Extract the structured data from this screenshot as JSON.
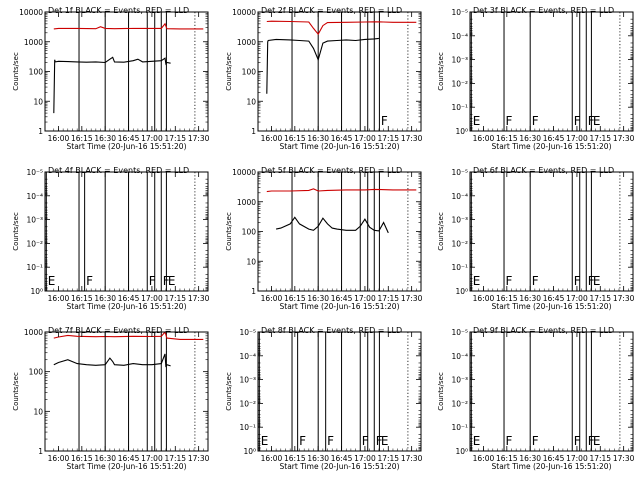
{
  "figure": {
    "start_label": "Start Time (20-Jun-16 15:51:20)",
    "ylabel": "Counts/sec",
    "x_ticks": [
      "16:00",
      "16:15",
      "16:30",
      "16:45",
      "17:00",
      "17:15",
      "17:30"
    ],
    "x_tick_hours": [
      16.0,
      16.25,
      16.5,
      16.75,
      17.0,
      17.25,
      17.5
    ],
    "xlim_hours": [
      15.856,
      17.6
    ],
    "dotted_line_hours": [
      17.46
    ],
    "colors": {
      "events": "#000000",
      "lld": "#cc0000"
    }
  },
  "log_ticks": {
    "counts": [
      "1",
      "10",
      "100",
      "1000",
      "10000"
    ],
    "powers": [
      "10⁰",
      "10⁻¹",
      "10⁻²",
      "10⁻³",
      "10⁻⁴",
      "10⁻⁵"
    ]
  },
  "chart_data": [
    {
      "id": "det1",
      "title": "Det 1f BLACK = Events, RED = LLD",
      "type": "line",
      "yscale": "log",
      "ylim": [
        1,
        10000
      ],
      "ytick_style": "counts",
      "markers": [
        {
          "t": 16.22,
          "label": ""
        },
        {
          "t": 16.5,
          "label": ""
        },
        {
          "t": 16.75,
          "label": ""
        },
        {
          "t": 16.95,
          "label": ""
        },
        {
          "t": 17.03,
          "label": ""
        },
        {
          "t": 17.1,
          "label": ""
        },
        {
          "t": 17.155,
          "label": ""
        }
      ],
      "series": [
        {
          "color": "events",
          "x": [
            15.95,
            15.96,
            15.965,
            16.0,
            16.1,
            16.2,
            16.3,
            16.4,
            16.5,
            16.55,
            16.58,
            16.6,
            16.7,
            16.8,
            16.85,
            16.9,
            17.0,
            17.1,
            17.14,
            17.15,
            17.16,
            17.2
          ],
          "y": [
            4,
            250,
            210,
            220,
            215,
            210,
            205,
            210,
            200,
            260,
            300,
            210,
            205,
            230,
            260,
            210,
            220,
            230,
            280,
            180,
            200,
            190
          ]
        },
        {
          "color": "lld",
          "x": [
            15.95,
            16.0,
            16.2,
            16.4,
            16.45,
            16.5,
            16.6,
            16.8,
            17.0,
            17.1,
            17.14,
            17.16,
            17.3,
            17.55
          ],
          "y": [
            2700,
            2800,
            2800,
            2750,
            3200,
            2800,
            2750,
            2800,
            2800,
            2800,
            4000,
            2750,
            2700,
            2700
          ]
        }
      ]
    },
    {
      "id": "det2",
      "title": "Det 2f BLACK = Events, RED = LLD",
      "type": "line",
      "yscale": "log",
      "ylim": [
        1,
        10000
      ],
      "ytick_style": "counts",
      "markers": [
        {
          "t": 16.22,
          "label": ""
        },
        {
          "t": 16.5,
          "label": ""
        },
        {
          "t": 16.75,
          "label": ""
        },
        {
          "t": 16.95,
          "label": ""
        },
        {
          "t": 17.03,
          "label": ""
        },
        {
          "t": 17.1,
          "label": ""
        },
        {
          "t": 17.155,
          "label": "F"
        }
      ],
      "series": [
        {
          "color": "events",
          "x": [
            15.95,
            15.96,
            15.965,
            16.05,
            16.2,
            16.3,
            16.4,
            16.45,
            16.5,
            16.55,
            16.6,
            16.7,
            16.8,
            16.9,
            17.0,
            17.1,
            17.15
          ],
          "y": [
            18,
            1000,
            1100,
            1200,
            1150,
            1100,
            1050,
            600,
            250,
            900,
            1050,
            1100,
            1150,
            1100,
            1200,
            1250,
            1300
          ]
        },
        {
          "color": "lld",
          "x": [
            15.95,
            16.0,
            16.2,
            16.4,
            16.45,
            16.5,
            16.55,
            16.6,
            16.8,
            17.0,
            17.1,
            17.2,
            17.3,
            17.55
          ],
          "y": [
            4800,
            4900,
            4800,
            4600,
            2800,
            1800,
            3500,
            4400,
            4500,
            4600,
            4700,
            4600,
            4500,
            4500
          ]
        }
      ]
    },
    {
      "id": "det3",
      "title": "Det 3f BLACK = Events, RED = LLD",
      "type": "line",
      "yscale": "log",
      "ylim": [
        1,
        1e-05
      ],
      "ytick_style": "powers",
      "markers": [
        {
          "t": 15.87,
          "label": "E"
        },
        {
          "t": 16.22,
          "label": "F"
        },
        {
          "t": 16.5,
          "label": "F"
        },
        {
          "t": 16.95,
          "label": "F"
        },
        {
          "t": 17.03,
          "label": ""
        },
        {
          "t": 17.1,
          "label": "F"
        },
        {
          "t": 17.155,
          "label": "E"
        }
      ],
      "series": []
    },
    {
      "id": "det4",
      "title": "Det 4f BLACK = Events, RED = LLD",
      "type": "line",
      "yscale": "log",
      "ylim": [
        1,
        1e-05
      ],
      "ytick_style": "powers",
      "markers": [
        {
          "t": 15.87,
          "label": "E"
        },
        {
          "t": 16.22,
          "label": ""
        },
        {
          "t": 16.28,
          "label": "F"
        },
        {
          "t": 16.5,
          "label": ""
        },
        {
          "t": 16.75,
          "label": ""
        },
        {
          "t": 16.95,
          "label": "F"
        },
        {
          "t": 17.03,
          "label": ""
        },
        {
          "t": 17.1,
          "label": "F"
        },
        {
          "t": 17.155,
          "label": "E"
        }
      ],
      "series": []
    },
    {
      "id": "det5",
      "title": "Det 5f BLACK = Events, RED = LLD",
      "type": "line",
      "yscale": "log",
      "ylim": [
        1,
        10000
      ],
      "ytick_style": "counts",
      "markers": [
        {
          "t": 16.22,
          "label": ""
        },
        {
          "t": 16.5,
          "label": ""
        },
        {
          "t": 16.75,
          "label": ""
        },
        {
          "t": 16.95,
          "label": ""
        },
        {
          "t": 17.03,
          "label": ""
        },
        {
          "t": 17.1,
          "label": ""
        },
        {
          "t": 17.155,
          "label": ""
        }
      ],
      "series": [
        {
          "color": "events",
          "x": [
            16.05,
            16.1,
            16.2,
            16.25,
            16.3,
            16.4,
            16.45,
            16.5,
            16.55,
            16.6,
            16.65,
            16.7,
            16.8,
            16.9,
            16.95,
            17.0,
            17.05,
            17.1,
            17.15,
            17.2,
            17.25
          ],
          "y": [
            120,
            130,
            180,
            300,
            180,
            120,
            110,
            150,
            280,
            180,
            130,
            120,
            110,
            110,
            150,
            260,
            140,
            110,
            105,
            200,
            90
          ]
        },
        {
          "color": "lld",
          "x": [
            15.95,
            16.0,
            16.2,
            16.4,
            16.45,
            16.5,
            16.6,
            16.8,
            17.0,
            17.1,
            17.3,
            17.55
          ],
          "y": [
            2200,
            2300,
            2300,
            2400,
            2700,
            2300,
            2400,
            2500,
            2500,
            2600,
            2500,
            2500
          ]
        }
      ]
    },
    {
      "id": "det6",
      "title": "Det 6f BLACK = Events, RED = LLD",
      "type": "line",
      "yscale": "log",
      "ylim": [
        1,
        1e-05
      ],
      "ytick_style": "powers",
      "markers": [
        {
          "t": 15.87,
          "label": "E"
        },
        {
          "t": 16.22,
          "label": "F"
        },
        {
          "t": 16.5,
          "label": "F"
        },
        {
          "t": 16.95,
          "label": "F"
        },
        {
          "t": 17.03,
          "label": ""
        },
        {
          "t": 17.1,
          "label": "F"
        },
        {
          "t": 17.155,
          "label": "E"
        }
      ],
      "series": []
    },
    {
      "id": "det7",
      "title": "Det 7f BLACK = Events, RED = LLD",
      "type": "line",
      "yscale": "log",
      "ylim": [
        1,
        1000
      ],
      "ytick_style": "counts",
      "markers": [
        {
          "t": 16.22,
          "label": ""
        },
        {
          "t": 16.5,
          "label": ""
        },
        {
          "t": 16.75,
          "label": ""
        },
        {
          "t": 16.95,
          "label": ""
        },
        {
          "t": 17.03,
          "label": ""
        },
        {
          "t": 17.1,
          "label": ""
        },
        {
          "t": 17.155,
          "label": ""
        }
      ],
      "series": [
        {
          "color": "events",
          "x": [
            15.95,
            16.0,
            16.1,
            16.2,
            16.3,
            16.4,
            16.5,
            16.55,
            16.58,
            16.6,
            16.7,
            16.8,
            16.9,
            17.0,
            17.1,
            17.14,
            17.15,
            17.16,
            17.2
          ],
          "y": [
            150,
            170,
            200,
            160,
            150,
            145,
            150,
            220,
            180,
            150,
            145,
            160,
            150,
            150,
            160,
            280,
            130,
            150,
            140
          ]
        },
        {
          "color": "lld",
          "x": [
            15.95,
            16.0,
            16.1,
            16.2,
            16.4,
            16.5,
            16.6,
            16.8,
            17.0,
            17.1,
            17.14,
            17.16,
            17.3,
            17.55
          ],
          "y": [
            700,
            750,
            820,
            780,
            760,
            770,
            760,
            780,
            770,
            780,
            1000,
            700,
            650,
            650
          ]
        }
      ]
    },
    {
      "id": "det8",
      "title": "Det 8f BLACK = Events, RED = LLD",
      "type": "line",
      "yscale": "log",
      "ylim": [
        1,
        1e-05
      ],
      "ytick_style": "powers",
      "markers": [
        {
          "t": 15.87,
          "label": "E"
        },
        {
          "t": 16.22,
          "label": ""
        },
        {
          "t": 16.28,
          "label": "F"
        },
        {
          "t": 16.5,
          "label": ""
        },
        {
          "t": 16.58,
          "label": "F"
        },
        {
          "t": 16.75,
          "label": ""
        },
        {
          "t": 16.95,
          "label": "F"
        },
        {
          "t": 17.03,
          "label": ""
        },
        {
          "t": 17.1,
          "label": "F"
        },
        {
          "t": 17.155,
          "label": "E"
        }
      ],
      "series": []
    },
    {
      "id": "det9",
      "title": "Det 9f BLACK = Events, RED = LLD",
      "type": "line",
      "yscale": "log",
      "ylim": [
        1,
        1e-05
      ],
      "ytick_style": "powers",
      "markers": [
        {
          "t": 15.87,
          "label": "E"
        },
        {
          "t": 16.22,
          "label": "F"
        },
        {
          "t": 16.5,
          "label": "F"
        },
        {
          "t": 16.95,
          "label": "F"
        },
        {
          "t": 17.03,
          "label": ""
        },
        {
          "t": 17.1,
          "label": "F"
        },
        {
          "t": 17.155,
          "label": "E"
        }
      ],
      "series": []
    }
  ]
}
